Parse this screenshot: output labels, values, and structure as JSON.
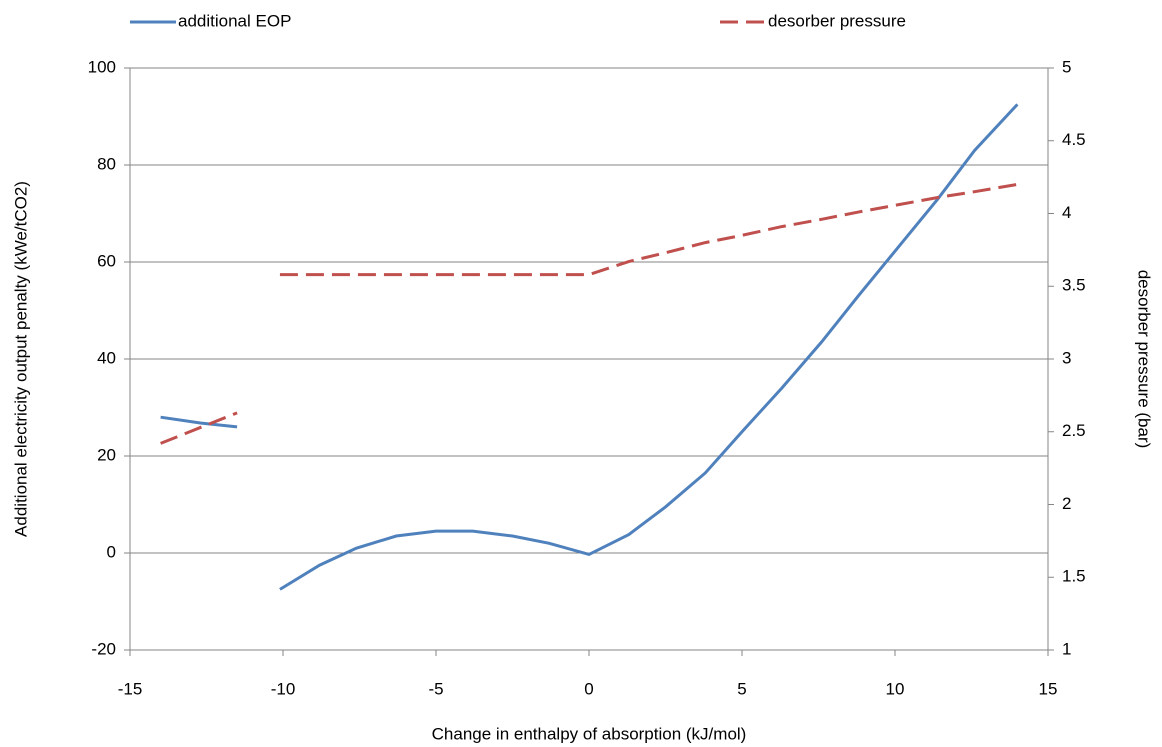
{
  "chart_data": {
    "type": "line",
    "x_label": "Change in enthalpy of absorption (kJ/mol)",
    "y_label": "Additional electricity output penalty (kWe/tCO2)",
    "y2_label": "desorber pressure (bar)",
    "xlim": [
      -15,
      15
    ],
    "xticks": [
      -15,
      -10,
      -5,
      0,
      5,
      10,
      15
    ],
    "ylim": [
      -20,
      100
    ],
    "yticks": [
      -20,
      0,
      20,
      40,
      60,
      80,
      100
    ],
    "y2lim": [
      1,
      5
    ],
    "y2ticks": [
      1,
      1.5,
      2,
      2.5,
      3,
      3.5,
      4,
      4.5,
      5
    ],
    "grid": true,
    "series": [
      {
        "name": "additional EOP",
        "color": "#4f81bd",
        "dash": "solid",
        "x": [
          -14,
          -12.7,
          -11.5,
          -11,
          -10.1,
          -8.8,
          -7.6,
          -6.3,
          -5,
          -3.8,
          -2.5,
          -1.3,
          0,
          1.3,
          2.5,
          3.8,
          5,
          6.3,
          7.6,
          8.8,
          10.1,
          11.4,
          12.6,
          14
        ],
        "values": [
          28,
          26.8,
          26,
          null,
          -7.5,
          -2.5,
          1,
          3.5,
          4.5,
          4.5,
          3.5,
          2,
          -0.3,
          3.8,
          9.5,
          16.5,
          25,
          34,
          43.5,
          53,
          63,
          73,
          83,
          92.5
        ]
      },
      {
        "name": "desorber pressure",
        "color": "#c0504d",
        "dash": "dashed",
        "axis": "y2",
        "x": [
          -14,
          -11.5,
          -11,
          -10.1,
          -8.8,
          -7.6,
          -6.3,
          -5,
          -3.8,
          -2.5,
          -1.3,
          0,
          1.3,
          2.5,
          3.8,
          5,
          6.3,
          7.6,
          8.8,
          10.1,
          11.4,
          12.6,
          14
        ],
        "values": [
          2.42,
          2.63,
          null,
          3.58,
          3.58,
          3.58,
          3.58,
          3.58,
          3.58,
          3.58,
          3.58,
          3.58,
          3.67,
          3.73,
          3.8,
          3.85,
          3.91,
          3.96,
          4.01,
          4.06,
          4.11,
          4.15,
          4.2
        ]
      }
    ]
  }
}
